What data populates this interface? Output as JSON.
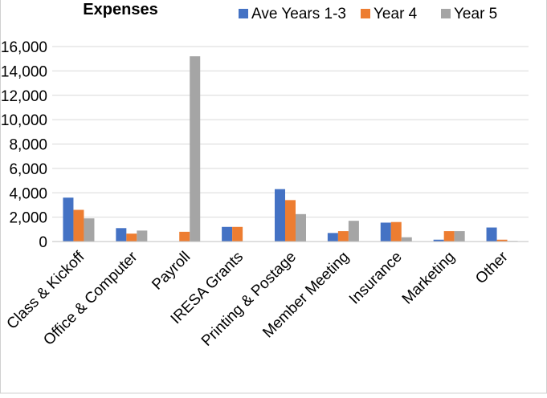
{
  "chart_data": {
    "type": "bar",
    "title": "Expenses",
    "categories": [
      "Class & Kickoff",
      "Office & Computer",
      "Payroll",
      "IRESA Grants",
      "Printing & Postage",
      "Member Meeting",
      "Insurance",
      "Marketing",
      "Other"
    ],
    "series": [
      {
        "name": "Ave Years 1-3",
        "color": "#4472C4",
        "values": [
          3600,
          1100,
          0,
          1200,
          4300,
          700,
          1550,
          150,
          1150
        ]
      },
      {
        "name": "Year 4",
        "color": "#ED7D31",
        "values": [
          2600,
          650,
          800,
          1200,
          3400,
          850,
          1600,
          850,
          150
        ]
      },
      {
        "name": "Year 5",
        "color": "#A5A5A5",
        "values": [
          1900,
          900,
          15200,
          0,
          2250,
          1700,
          350,
          850,
          50
        ]
      }
    ],
    "ylim": [
      0,
      16000
    ],
    "yticks": [
      "0",
      "2,000",
      "4,000",
      "6,000",
      "8,000",
      "10,000",
      "12,000",
      "14,000",
      "16,000"
    ],
    "grid": true,
    "legend_position": "top-right"
  }
}
